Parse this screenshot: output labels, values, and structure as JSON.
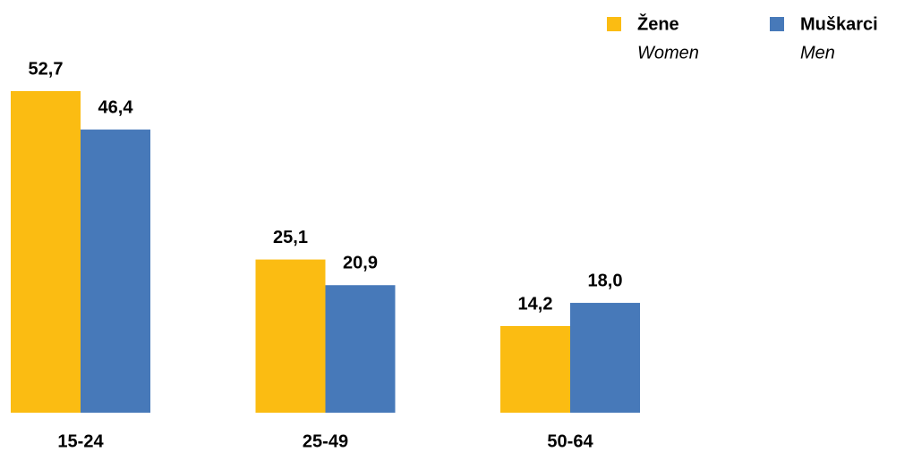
{
  "chart_data": {
    "type": "bar",
    "categories": [
      "15-24",
      "25-49",
      "50-64"
    ],
    "series": [
      {
        "name": "Žene",
        "translation": "Women",
        "color": "#fbbc12",
        "values": [
          52.7,
          25.1,
          14.2
        ],
        "value_labels": [
          "52,7",
          "25,1",
          "14,2"
        ]
      },
      {
        "name": "Muškarci",
        "translation": "Men",
        "color": "#4779b9",
        "values": [
          46.4,
          20.9,
          18.0
        ],
        "value_labels": [
          "46,4",
          "20,9",
          "18,0"
        ]
      }
    ],
    "legend": "top-right"
  }
}
